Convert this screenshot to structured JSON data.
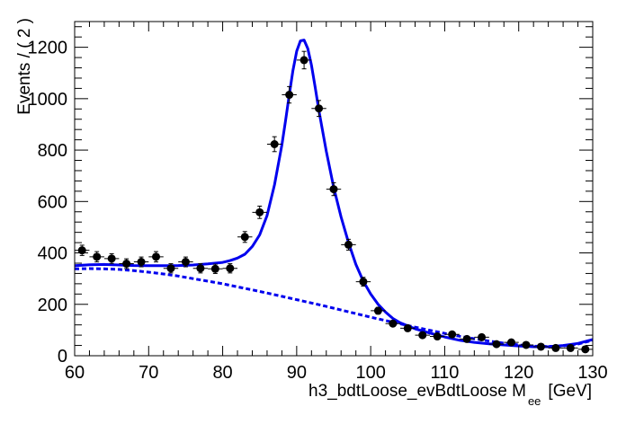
{
  "chart_data": {
    "type": "scatter",
    "xlabel_parts": {
      "main": "h3_bdtLoose_evBdtLoose  M",
      "sub": "ee",
      "unit": "[GeV]"
    },
    "ylabel": "Events / ( 2 )",
    "xlim": [
      60,
      130
    ],
    "ylim": [
      0,
      1300
    ],
    "x_ticks": [
      60,
      70,
      80,
      90,
      100,
      110,
      120,
      130
    ],
    "y_ticks": [
      0,
      200,
      400,
      600,
      800,
      1000,
      1200
    ],
    "bin_width": 2,
    "colors": {
      "fit": "#0000ee",
      "data": "#000000"
    },
    "series": [
      {
        "type": "points_with_errors",
        "x": [
          61,
          63,
          65,
          67,
          69,
          71,
          73,
          75,
          77,
          79,
          81,
          83,
          85,
          87,
          89,
          91,
          93,
          95,
          97,
          99,
          101,
          103,
          105,
          107,
          109,
          111,
          113,
          115,
          117,
          119,
          121,
          123,
          125,
          127,
          129
        ],
        "values": [
          410,
          385,
          378,
          358,
          365,
          385,
          340,
          365,
          340,
          338,
          340,
          462,
          558,
          823,
          1015,
          1150,
          962,
          648,
          432,
          288,
          175,
          125,
          107,
          80,
          75,
          83,
          65,
          72,
          45,
          52,
          42,
          35,
          30,
          30,
          25
        ],
        "errors": [
          20,
          20,
          19,
          19,
          19,
          20,
          18,
          19,
          18,
          18,
          18,
          21,
          24,
          29,
          32,
          34,
          31,
          25,
          21,
          17,
          13,
          11,
          10,
          9,
          9,
          9,
          8,
          8,
          7,
          7,
          6,
          6,
          5,
          5,
          5
        ]
      },
      {
        "type": "line",
        "style": "solid",
        "x": [
          60,
          62,
          64,
          66,
          68,
          70,
          72,
          74,
          76,
          78,
          80,
          81,
          82,
          83,
          84,
          85,
          86,
          87,
          88,
          88.5,
          89,
          89.5,
          90,
          90.5,
          91,
          91.5,
          92,
          92.5,
          93,
          94,
          95,
          96,
          97,
          98,
          99,
          100,
          101,
          102,
          103,
          104,
          106,
          108,
          110,
          112,
          114,
          116,
          118,
          120,
          122,
          124,
          126,
          128,
          130
        ],
        "values": [
          350,
          354,
          355,
          353,
          351,
          350,
          350,
          351,
          353,
          357,
          363,
          370,
          380,
          395,
          425,
          470,
          545,
          665,
          820,
          915,
          1015,
          1110,
          1185,
          1225,
          1228,
          1195,
          1130,
          1045,
          955,
          795,
          655,
          540,
          440,
          355,
          290,
          240,
          200,
          170,
          145,
          128,
          105,
          88,
          73,
          60,
          52,
          46,
          42,
          38,
          35,
          35,
          40,
          48,
          63
        ]
      },
      {
        "type": "line",
        "style": "dashed",
        "x": [
          60,
          62,
          64,
          66,
          68,
          70,
          72,
          74,
          76,
          78,
          80,
          82,
          84,
          86,
          88,
          90,
          92,
          94,
          96,
          98,
          100,
          102,
          104,
          106,
          108,
          110,
          112,
          114,
          116,
          118,
          120,
          122,
          124,
          126,
          128,
          130
        ],
        "values": [
          338,
          339,
          338,
          336,
          331,
          325,
          318,
          310,
          300,
          290,
          280,
          268,
          256,
          244,
          231,
          218,
          205,
          192,
          178,
          164,
          150,
          137,
          124,
          111,
          99,
          87,
          76,
          66,
          57,
          49,
          42,
          37,
          36,
          38,
          45,
          60
        ]
      }
    ]
  }
}
